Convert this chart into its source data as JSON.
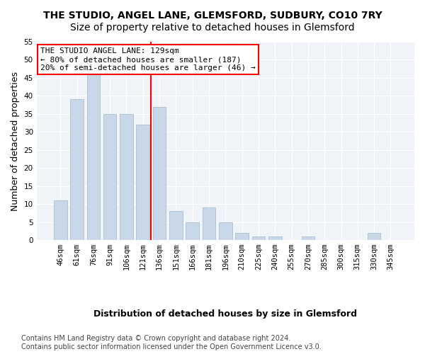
{
  "title": "THE STUDIO, ANGEL LANE, GLEMSFORD, SUDBURY, CO10 7RY",
  "subtitle": "Size of property relative to detached houses in Glemsford",
  "xlabel": "Distribution of detached houses by size in Glemsford",
  "ylabel": "Number of detached properties",
  "categories": [
    "46sqm",
    "61sqm",
    "76sqm",
    "91sqm",
    "106sqm",
    "121sqm",
    "136sqm",
    "151sqm",
    "166sqm",
    "181sqm",
    "196sqm",
    "210sqm",
    "225sqm",
    "240sqm",
    "255sqm",
    "270sqm",
    "285sqm",
    "300sqm",
    "315sqm",
    "330sqm",
    "345sqm"
  ],
  "values": [
    11,
    39,
    46,
    35,
    35,
    32,
    37,
    8,
    5,
    9,
    5,
    2,
    1,
    1,
    0,
    1,
    0,
    0,
    0,
    2,
    0
  ],
  "bar_color": "#c8d8e8",
  "bar_edge_color": "#a0b8cc",
  "vline_x": 6,
  "vline_color": "red",
  "annotation_text": "THE STUDIO ANGEL LANE: 129sqm\n← 80% of detached houses are smaller (187)\n20% of semi-detached houses are larger (46) →",
  "annotation_box_color": "white",
  "annotation_box_edge": "red",
  "ylim": [
    0,
    55
  ],
  "yticks": [
    0,
    5,
    10,
    15,
    20,
    25,
    30,
    35,
    40,
    45,
    50,
    55
  ],
  "bg_color": "#f0f4f8",
  "footer": "Contains HM Land Registry data © Crown copyright and database right 2024.\nContains public sector information licensed under the Open Government Licence v3.0.",
  "title_fontsize": 10,
  "subtitle_fontsize": 10,
  "xlabel_fontsize": 9,
  "ylabel_fontsize": 9,
  "tick_fontsize": 7.5,
  "annotation_fontsize": 8,
  "footer_fontsize": 7
}
